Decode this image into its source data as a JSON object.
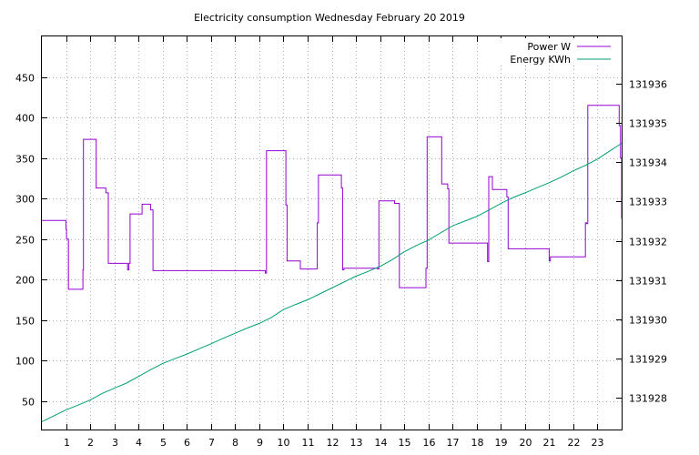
{
  "chart_data": {
    "type": "line",
    "title": "Electricity consumption Wednesday February 20 2019",
    "xlabel": "",
    "ylabel": "",
    "y2label": "",
    "grid": true,
    "legend_position": "top-right",
    "xlim": [
      0,
      24
    ],
    "ylim": [
      15,
      500
    ],
    "y2lim": [
      131927.2,
      131937.2
    ],
    "x_ticks": [
      1,
      2,
      3,
      4,
      5,
      6,
      7,
      8,
      9,
      10,
      11,
      12,
      13,
      14,
      15,
      16,
      17,
      18,
      19,
      20,
      21,
      22,
      23
    ],
    "x_tick_labels": [
      "1",
      "2",
      "3",
      "4",
      "5",
      "6",
      "7",
      "8",
      "9",
      "10",
      "11",
      "12",
      "13",
      "14",
      "15",
      "16",
      "17",
      "18",
      "19",
      "20",
      "21",
      "22",
      "23"
    ],
    "y_ticks": [
      50,
      100,
      150,
      200,
      250,
      300,
      350,
      400,
      450
    ],
    "y_tick_labels": [
      "50",
      "100",
      "150",
      "200",
      "250",
      "300",
      "350",
      "400",
      "450"
    ],
    "y2_ticks": [
      131928,
      131929,
      131930,
      131931,
      131932,
      131933,
      131934,
      131935,
      131936
    ],
    "y2_tick_labels": [
      "131928",
      "131929",
      "131930",
      "131931",
      "131932",
      "131933",
      "131934",
      "131935",
      "131936"
    ],
    "series": [
      {
        "name": "Power W",
        "axis": "y1",
        "color": "#9400d3",
        "step": true,
        "x": [
          0,
          1.0,
          1.02,
          1.1,
          1.7,
          1.72,
          1.75,
          2.25,
          2.65,
          2.75,
          3.55,
          3.6,
          3.65,
          4.15,
          4.5,
          4.6,
          9.2,
          9.25,
          9.3,
          10.1,
          10.15,
          10.7,
          11.35,
          11.4,
          11.45,
          12.4,
          12.45,
          12.5,
          13.9,
          13.95,
          14.6,
          14.8,
          15.9,
          15.95,
          16.55,
          16.8,
          16.85,
          18.45,
          18.5,
          18.65,
          19.25,
          19.3,
          20.7,
          21.0,
          21.05,
          22.5,
          22.55,
          22.6,
          23.9,
          23.95,
          24.0
        ],
        "values": [
          273,
          262,
          250,
          188,
          212,
          373,
          373,
          313,
          307,
          220,
          212,
          220,
          281,
          293,
          286,
          211,
          211,
          208,
          359,
          292,
          223,
          213,
          213,
          270,
          329,
          313,
          212,
          214,
          213,
          297,
          294,
          190,
          214,
          376,
          318,
          312,
          245,
          222,
          327,
          311,
          302,
          238,
          238,
          223,
          228,
          270,
          269,
          415,
          390,
          350,
          275
        ]
      },
      {
        "name": "Energy KWh",
        "axis": "y2",
        "color": "#009e73",
        "step": false,
        "x": [
          0,
          0.5,
          1.0,
          1.5,
          2.0,
          2.5,
          3.0,
          3.5,
          4.0,
          4.5,
          5.0,
          5.5,
          6.0,
          6.5,
          7.0,
          7.5,
          8.0,
          8.5,
          9.0,
          9.5,
          10.0,
          10.5,
          11.0,
          11.5,
          12.0,
          12.5,
          13.0,
          13.5,
          14.0,
          14.5,
          15.0,
          15.5,
          16.0,
          16.5,
          17.0,
          17.5,
          18.0,
          18.5,
          19.0,
          19.5,
          20.0,
          20.5,
          21.0,
          21.5,
          22.0,
          22.5,
          23.0,
          23.5,
          24.0
        ],
        "values": [
          131927.4,
          131927.55,
          131927.7,
          131927.82,
          131927.95,
          131928.12,
          131928.25,
          131928.38,
          131928.55,
          131928.72,
          131928.88,
          131929.0,
          131929.12,
          131929.25,
          131929.38,
          131929.52,
          131929.65,
          131929.78,
          131929.9,
          131930.05,
          131930.25,
          131930.38,
          131930.5,
          131930.65,
          131930.8,
          131930.95,
          131931.1,
          131931.22,
          131931.35,
          131931.52,
          131931.72,
          131931.88,
          131932.02,
          131932.2,
          131932.38,
          131932.5,
          131932.62,
          131932.78,
          131932.95,
          131933.1,
          131933.22,
          131933.35,
          131933.48,
          131933.62,
          131933.78,
          131933.92,
          131934.08,
          131934.28,
          131934.48
        ]
      }
    ]
  }
}
